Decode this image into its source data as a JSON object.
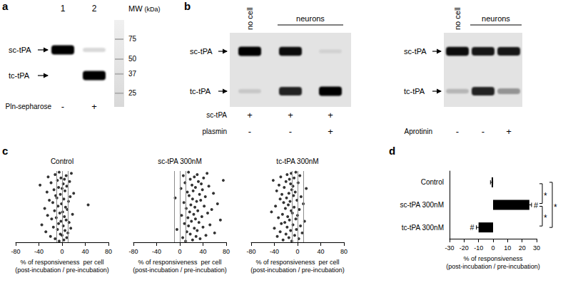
{
  "panel_labels": [
    "a",
    "b",
    "c",
    "d"
  ],
  "blots": [
    {
      "lanes": [
        "1",
        "2"
      ],
      "bands": {
        "sc-tPA": [
          1.0,
          0.15
        ],
        "tc-tPA": [
          0.0,
          1.0
        ]
      },
      "rows": [
        {
          "name": "Pln-sepharose",
          "values": [
            "-",
            "+"
          ]
        }
      ],
      "ladder": {
        "title": "MW",
        "unit": "(kDa)",
        "marks": [
          75,
          50,
          37,
          25
        ]
      }
    },
    {
      "groups": [
        {
          "name": "no cell",
          "lanes": 1
        },
        {
          "name": "neurons",
          "lanes": 2
        }
      ],
      "bands": {
        "sc-tPA": [
          1.0,
          0.95,
          0.08
        ],
        "tc-tPA": [
          0.12,
          0.85,
          1.0
        ]
      },
      "rows": [
        {
          "name": "sc-tPA",
          "values": [
            "+",
            "+",
            "+"
          ]
        },
        {
          "name": "plasmin",
          "values": [
            "-",
            "-",
            "+"
          ]
        }
      ]
    },
    {
      "groups": [
        {
          "name": "no cell",
          "lanes": 1
        },
        {
          "name": "neurons",
          "lanes": 2
        }
      ],
      "bands": {
        "sc-tPA": [
          0.95,
          0.9,
          0.9
        ],
        "tc-tPA": [
          0.2,
          0.85,
          0.35
        ]
      },
      "rows": [
        {
          "name": "Aprotinin",
          "values": [
            "-",
            "-",
            "+"
          ]
        }
      ]
    }
  ],
  "chart_data": [
    {
      "type": "scatter",
      "title": "Control",
      "x": [
        -5,
        3,
        -12,
        8,
        -20,
        0,
        -3,
        10,
        -28,
        5,
        -8,
        15,
        -15,
        2,
        -35,
        -6,
        12,
        -2,
        7,
        -18,
        -10,
        4,
        -25,
        18,
        -4,
        1,
        -13,
        9,
        -30,
        6,
        -7,
        45,
        -1,
        -16,
        11,
        -22,
        3,
        -9,
        14,
        -11,
        -3,
        20,
        -26,
        5,
        -14,
        0,
        -6,
        8,
        -38,
        2,
        -19,
        13,
        -8,
        4,
        -2,
        -24,
        7,
        -12,
        16,
        -5
      ],
      "xlim": [
        -80,
        80
      ],
      "xticks": [
        -80,
        -40,
        0,
        40,
        80
      ],
      "xlabel": "% of responsiveness  per cell\n(post-incubation / pre-incubation)",
      "reference_lines": [
        -10,
        0,
        10
      ],
      "color": "#000000",
      "marker": "circle",
      "grid": false,
      "tick_labels": "x"
    },
    {
      "type": "scatter",
      "title": "sc-tPA 300nM",
      "x": [
        10,
        22,
        35,
        5,
        28,
        45,
        18,
        60,
        12,
        30,
        -5,
        25,
        40,
        15,
        52,
        8,
        33,
        20,
        70,
        27,
        14,
        38,
        3,
        24,
        48,
        17,
        31,
        55,
        11,
        26,
        42,
        19,
        65,
        7,
        29,
        36,
        22,
        -8,
        44,
        16,
        34,
        58,
        13,
        23,
        39,
        2,
        27,
        50,
        21,
        37,
        9,
        32,
        75,
        18,
        41,
        25,
        6,
        30,
        47,
        15
      ],
      "xlim": [
        -80,
        80
      ],
      "xticks": [
        -80,
        -40,
        0,
        40,
        80
      ],
      "xlabel": "% of responsiveness  per cell\n(post-incubation / pre-incubation)",
      "reference_lines": [
        -10,
        0,
        10
      ],
      "color": "#000000",
      "marker": "circle",
      "grid": false,
      "tick_labels": "x"
    },
    {
      "type": "scatter",
      "title": "tc-tPA 300nM",
      "x": [
        -10,
        -25,
        2,
        -15,
        -35,
        -5,
        -20,
        8,
        -30,
        -12,
        -2,
        -40,
        -18,
        5,
        -8,
        -28,
        -22,
        12,
        -14,
        -3,
        -33,
        -17,
        0,
        -26,
        -9,
        -45,
        -11,
        3,
        -21,
        -6,
        -38,
        -16,
        10,
        -24,
        -13,
        -1,
        -30,
        -19,
        6,
        -7,
        -27,
        -15,
        -4,
        -36,
        -10,
        15,
        -23,
        -8,
        -32,
        -12,
        1,
        -20,
        -42,
        -14,
        -6,
        -29,
        4,
        -18,
        -11,
        -3
      ],
      "xlim": [
        -80,
        80
      ],
      "xticks": [
        -80,
        -40,
        0,
        40,
        80
      ],
      "xlabel": "% of responsiveness  per cell\n(post-incubation / pre-incubation)",
      "reference_lines": [
        -10,
        0,
        10
      ],
      "color": "#000000",
      "marker": "circle",
      "grid": false,
      "tick_labels": "x"
    },
    {
      "type": "bar",
      "orientation": "horizontal",
      "categories": [
        "Control",
        "sc-tPA 300nM",
        "tc-tPA 300nM"
      ],
      "values": [
        -1,
        25,
        -10
      ],
      "errors": [
        0.8,
        1.5,
        1.5
      ],
      "annotations": [
        null,
        "#",
        "#"
      ],
      "significance": [
        {
          "from": "Control",
          "to": "sc-tPA 300nM",
          "label": "*"
        },
        {
          "from": "sc-tPA 300nM",
          "to": "tc-tPA 300nM",
          "label": "*"
        },
        {
          "from": "Control",
          "to": "tc-tPA 300nM",
          "label": "*"
        }
      ],
      "color": "#000000",
      "xlim": [
        -30,
        30
      ],
      "xticks": [
        -30,
        -20,
        -10,
        0,
        10,
        20,
        30
      ],
      "xlabel": "% of responsiveness\n(post-incubation / pre-incubation)",
      "grid": false
    }
  ]
}
